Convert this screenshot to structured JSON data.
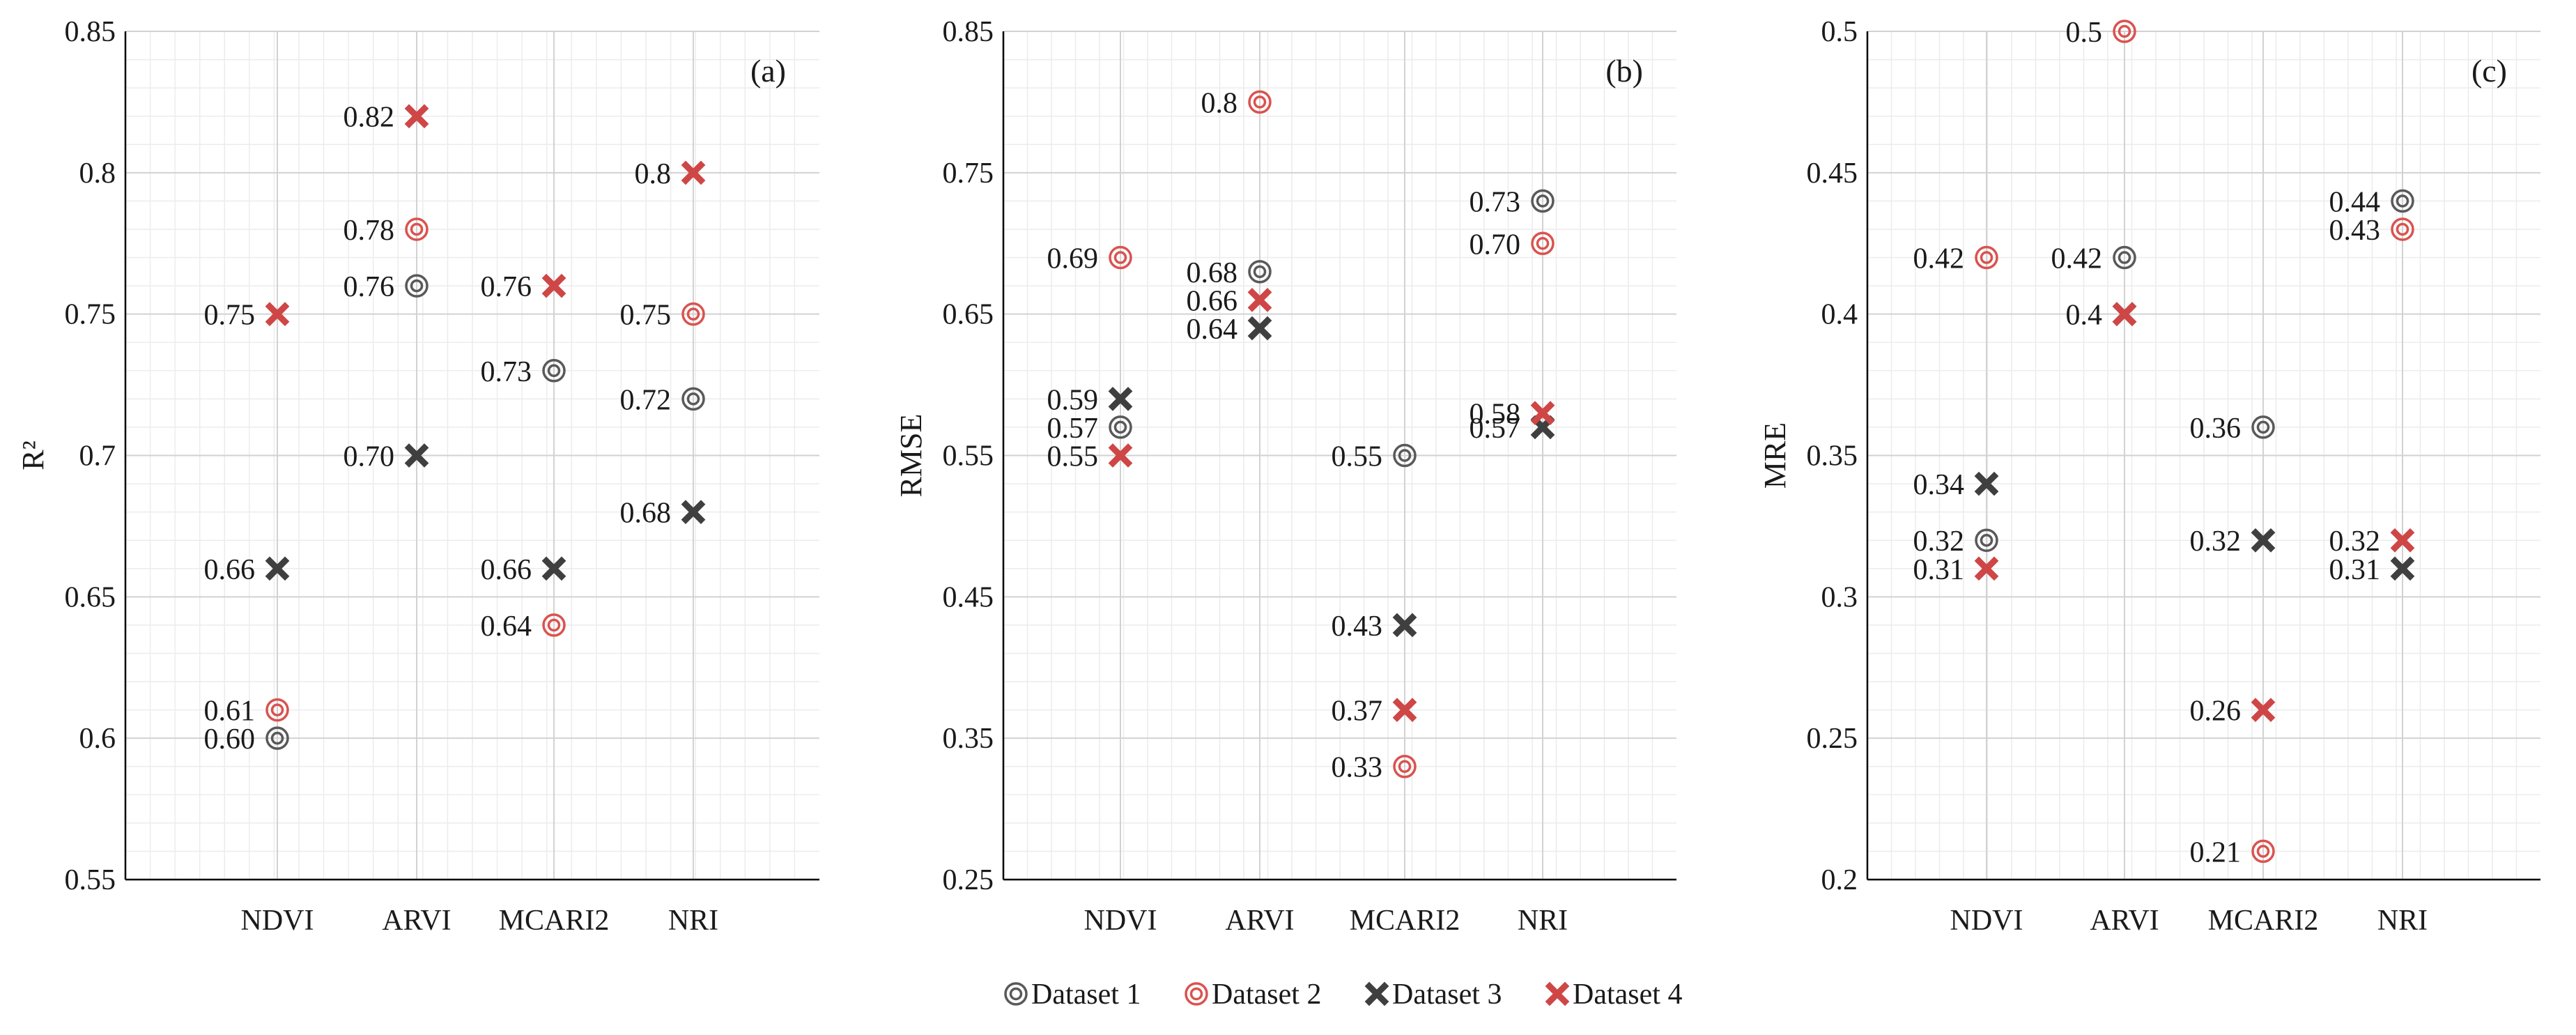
{
  "colors": {
    "dataset1": "#595959",
    "dataset2": "#d9534f",
    "dataset3": "#3f3f3f",
    "dataset4": "#cf4646",
    "grid_minor": "#ececec",
    "grid_major": "#d2d2d2",
    "axis": "#000000"
  },
  "legend": [
    {
      "name": "Dataset 1",
      "marker": "ring",
      "colorKey": "dataset1"
    },
    {
      "name": "Dataset 2",
      "marker": "ring",
      "colorKey": "dataset2"
    },
    {
      "name": "Dataset 3",
      "marker": "cross",
      "colorKey": "dataset3"
    },
    {
      "name": "Dataset 4",
      "marker": "cross",
      "colorKey": "dataset4"
    }
  ],
  "chart_data": [
    {
      "type": "scatter",
      "panel": "(a)",
      "ylabel": "R²",
      "ylim": [
        0.55,
        0.85
      ],
      "yticks": [
        "0.55",
        "0.6",
        "0.65",
        "0.7",
        "0.75",
        "0.8",
        "0.85"
      ],
      "categories": [
        "NDVI",
        "ARVI",
        "MCARI2",
        "NRI"
      ],
      "series": [
        {
          "name": "Dataset 1",
          "values": [
            0.6,
            0.76,
            0.73,
            0.72
          ],
          "labels": [
            "0.60",
            "0.76",
            "0.73",
            "0.72"
          ]
        },
        {
          "name": "Dataset 2",
          "values": [
            0.61,
            0.78,
            0.64,
            0.75
          ],
          "labels": [
            "0.61",
            "0.78",
            "0.64",
            "0.75"
          ]
        },
        {
          "name": "Dataset 3",
          "values": [
            0.66,
            0.7,
            0.66,
            0.68
          ],
          "labels": [
            "0.66",
            "0.70",
            "0.66",
            "0.68"
          ]
        },
        {
          "name": "Dataset 4",
          "values": [
            0.75,
            0.82,
            0.76,
            0.8
          ],
          "labels": [
            "0.75",
            "0.82",
            "0.76",
            "0.8"
          ]
        }
      ]
    },
    {
      "type": "scatter",
      "panel": "(b)",
      "ylabel": "RMSE",
      "ylim": [
        0.25,
        0.85
      ],
      "yticks": [
        "0.25",
        "0.35",
        "0.45",
        "0.55",
        "0.65",
        "0.75",
        "0.85"
      ],
      "categories": [
        "NDVI",
        "ARVI",
        "MCARI2",
        "NRI"
      ],
      "series": [
        {
          "name": "Dataset 1",
          "values": [
            0.57,
            0.68,
            0.55,
            0.73
          ],
          "labels": [
            "0.57",
            "0.68",
            "0.55",
            "0.73"
          ]
        },
        {
          "name": "Dataset 2",
          "values": [
            0.69,
            0.8,
            0.33,
            0.7
          ],
          "labels": [
            "0.69",
            "0.8",
            "0.33",
            "0.70"
          ]
        },
        {
          "name": "Dataset 3",
          "values": [
            0.59,
            0.64,
            0.43,
            0.57
          ],
          "labels": [
            "0.59",
            "0.64",
            "0.43",
            "0.57"
          ]
        },
        {
          "name": "Dataset 4",
          "values": [
            0.55,
            0.66,
            0.37,
            0.58
          ],
          "labels": [
            "0.55",
            "0.66",
            "0.37",
            "0.58"
          ]
        }
      ]
    },
    {
      "type": "scatter",
      "panel": "(c)",
      "ylabel": "MRE",
      "ylim": [
        0.2,
        0.5
      ],
      "yticks": [
        "0.2",
        "0.25",
        "0.3",
        "0.35",
        "0.4",
        "0.45",
        "0.5"
      ],
      "categories": [
        "NDVI",
        "ARVI",
        "MCARI2",
        "NRI"
      ],
      "series": [
        {
          "name": "Dataset 1",
          "values": [
            0.32,
            0.42,
            0.36,
            0.44
          ],
          "labels": [
            "0.32",
            "0.42",
            "0.36",
            "0.44"
          ]
        },
        {
          "name": "Dataset 2",
          "values": [
            0.42,
            0.5,
            0.21,
            0.43
          ],
          "labels": [
            "0.42",
            "0.5",
            "0.21",
            "0.43"
          ]
        },
        {
          "name": "Dataset 3",
          "values": [
            0.34,
            0.4,
            0.32,
            0.31
          ],
          "labels": [
            "0.34",
            "0.4",
            "0.32",
            "0.31"
          ]
        },
        {
          "name": "Dataset 4",
          "values": [
            0.31,
            0.4,
            0.26,
            0.32
          ],
          "labels": [
            "0.31",
            "",
            "0.26",
            "0.32"
          ]
        }
      ]
    }
  ]
}
